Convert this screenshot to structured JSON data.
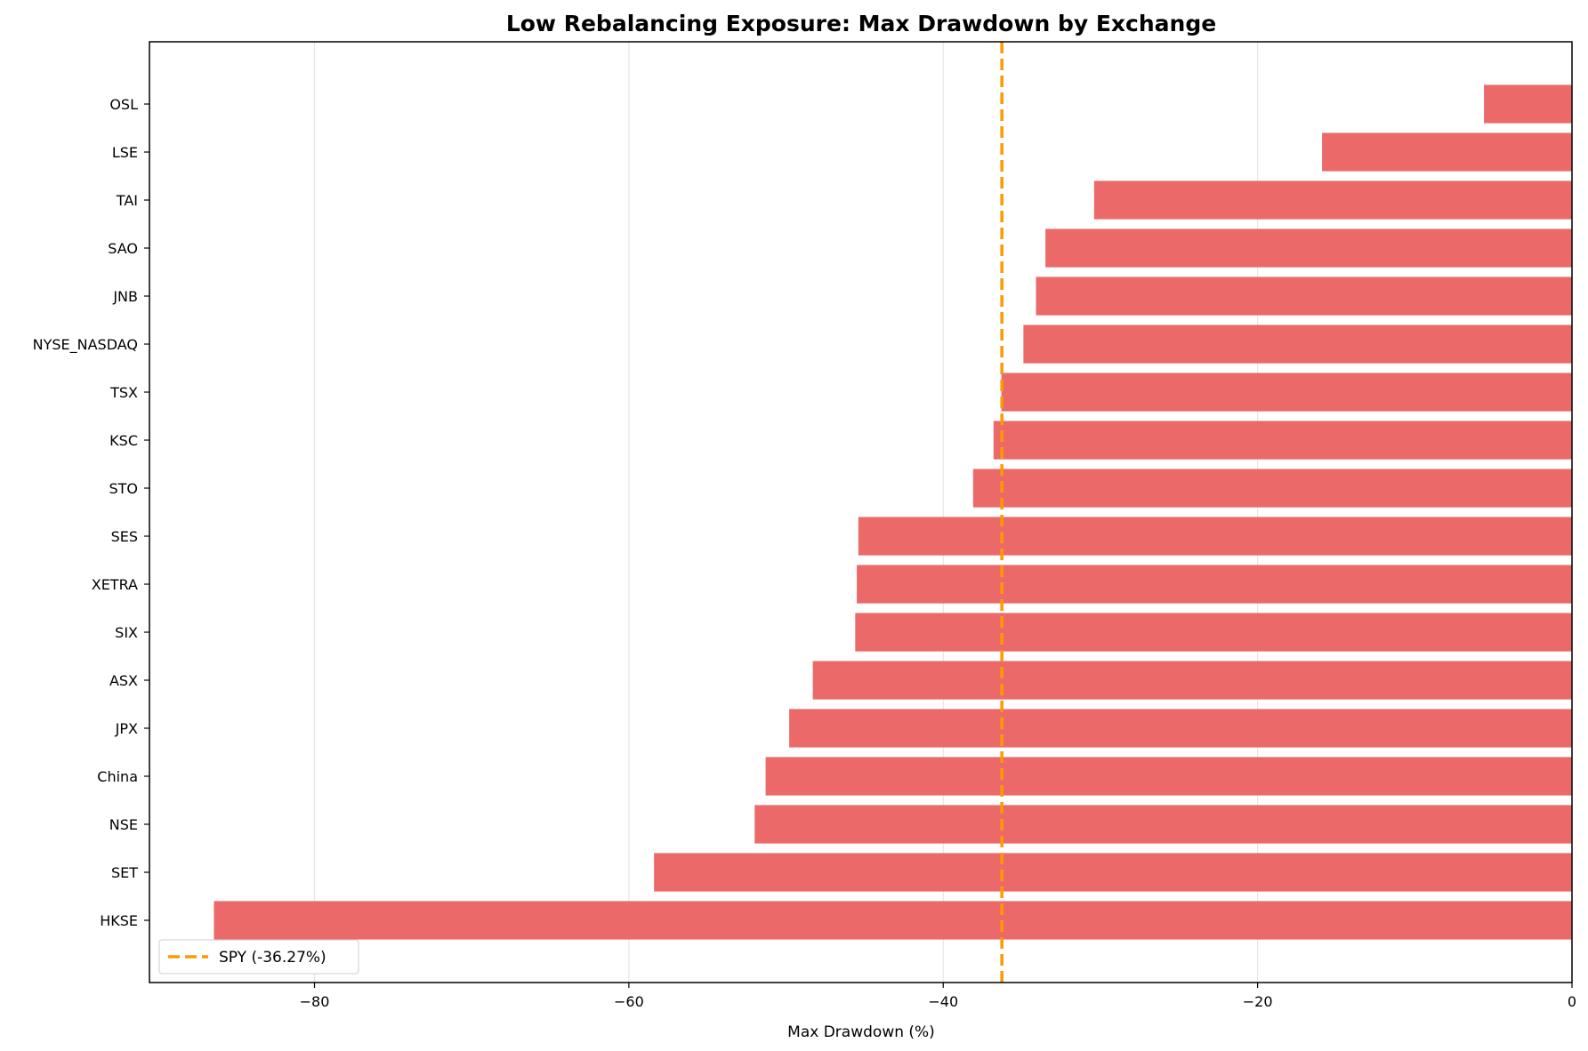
{
  "chart_data": {
    "type": "bar",
    "orientation": "horizontal",
    "title": "Low Rebalancing Exposure: Max Drawdown by Exchange",
    "xlabel": "Max Drawdown (%)",
    "ylabel": "",
    "xlim": [
      -90.5,
      0
    ],
    "xticks": [
      -80,
      -60,
      -40,
      -20,
      0
    ],
    "grid": "x",
    "bar_color": "#eb6a69",
    "categories": [
      "OSL",
      "LSE",
      "TAI",
      "SAO",
      "JNB",
      "NYSE_NASDAQ",
      "TSX",
      "KSC",
      "STO",
      "SES",
      "XETRA",
      "SIX",
      "ASX",
      "JPX",
      "China",
      "NSE",
      "SET",
      "HKSE"
    ],
    "values": [
      -5.6,
      -15.9,
      -30.4,
      -33.5,
      -34.1,
      -34.9,
      -36.3,
      -36.8,
      -38.1,
      -45.4,
      -45.5,
      -45.6,
      -48.3,
      -49.8,
      -51.3,
      -52.0,
      -58.4,
      -86.4
    ],
    "reference_line": {
      "value": -36.27,
      "label": "SPY (-36.27%)",
      "color": "#ff9900",
      "style": "dashed"
    },
    "legend": {
      "placement": "lower-left"
    }
  }
}
